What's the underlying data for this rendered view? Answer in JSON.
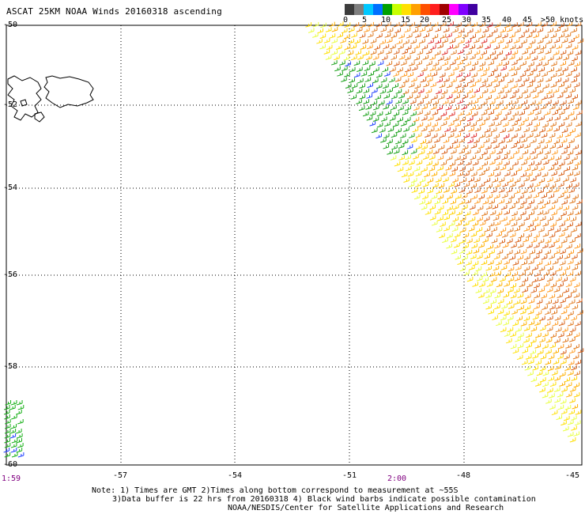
{
  "header": {
    "title": "ASCAT 25KM NOAA Winds 20160318 ascending"
  },
  "legend": {
    "labels": [
      "0",
      "5",
      "10",
      "15",
      "20",
      "25",
      "30",
      "35",
      "40",
      "45",
      ">50 knots"
    ],
    "colors": [
      "#3c3c3c",
      "#7f7f7f",
      "#00c8ff",
      "#0070ff",
      "#00a000",
      "#c8ff00",
      "#ffe000",
      "#ffa000",
      "#ff5000",
      "#ff1e1e",
      "#a00000",
      "#ff00ff",
      "#8000ff",
      "#4000a0"
    ]
  },
  "map": {
    "lat_labels": [
      "-50",
      "-52",
      "-54",
      "-56",
      "-58",
      "-60"
    ],
    "lon_labels": [
      "-57",
      "-54",
      "-51",
      "-48",
      "-45"
    ],
    "time_labels": [
      "1:59",
      "2:00"
    ]
  },
  "notes": {
    "line1": "Note: 1) Times are GMT 2)Times along bottom correspond to measurement at ~55S",
    "line2": "3)Data buffer is 22 hrs from 20160318 4) Black wind barbs indicate possible contamination",
    "line3": "NOAA/NESDIS/Center for Satellite Applications and Research"
  }
}
